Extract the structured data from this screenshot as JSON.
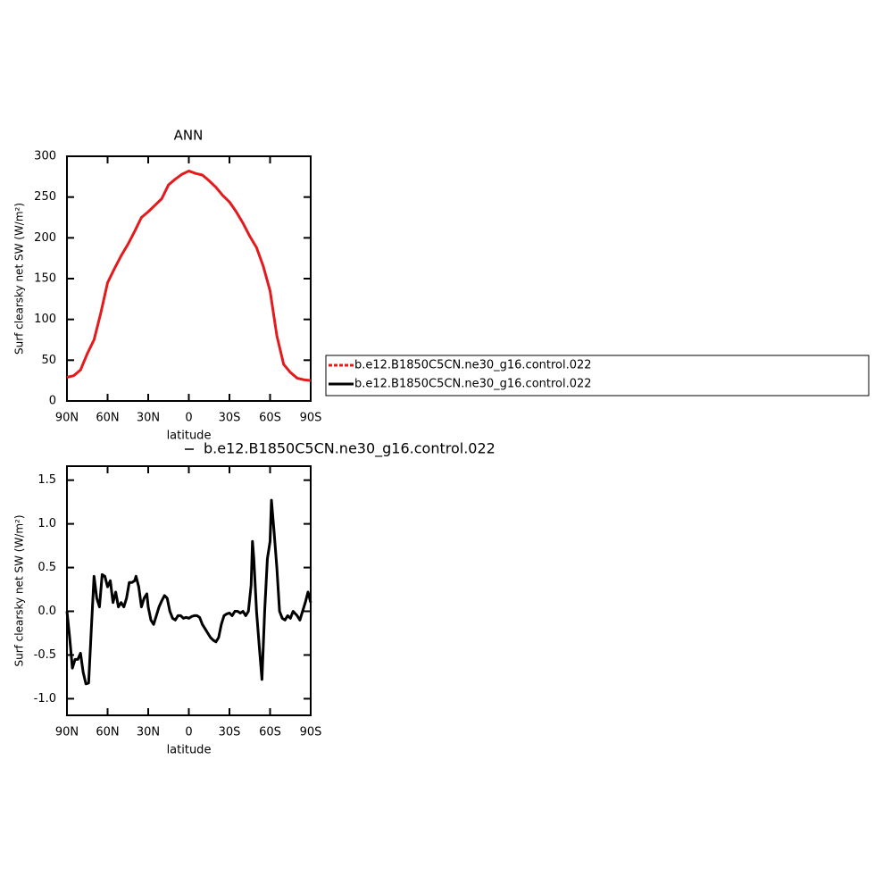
{
  "chart_data": [
    {
      "type": "line",
      "title": "ANN",
      "ylabel": "Surf clearsky net SW (W/m²)",
      "xlabel": "latitude",
      "xlim": [
        90,
        -90
      ],
      "xticks": [
        {
          "value": 90,
          "label": "90N"
        },
        {
          "value": 60,
          "label": "60N"
        },
        {
          "value": 30,
          "label": "30N"
        },
        0,
        {
          "value": -30,
          "label": "30S"
        },
        {
          "value": -60,
          "label": "60S"
        },
        {
          "value": -90,
          "label": "90S"
        }
      ],
      "ylim": [
        0,
        300
      ],
      "yticks": [
        0,
        50,
        100,
        150,
        200,
        250,
        300
      ],
      "x": [
        90,
        85,
        80,
        75,
        70,
        65,
        60,
        55,
        50,
        45,
        40,
        35,
        30,
        25,
        20,
        15,
        10,
        5,
        0,
        -5,
        -10,
        -15,
        -20,
        -25,
        -30,
        -35,
        -40,
        -45,
        -50,
        -55,
        -60,
        -65,
        -70,
        -75,
        -80,
        -85,
        -90
      ],
      "series": [
        {
          "name": "b.e12.B1850C5CN.ne30_g16.control.022",
          "color": "#e41a1c",
          "values": [
            29,
            31,
            38,
            58,
            75,
            108,
            145,
            162,
            178,
            192,
            208,
            225,
            232,
            240,
            248,
            265,
            272,
            278,
            282,
            279,
            277,
            270,
            262,
            252,
            244,
            232,
            218,
            202,
            188,
            165,
            135,
            80,
            45,
            35,
            28,
            26,
            25
          ]
        }
      ]
    },
    {
      "type": "line",
      "ylabel": "Surf clearsky net SW (W/m²)",
      "xlabel": "latitude",
      "xlim": [
        90,
        -90
      ],
      "xticks": [
        {
          "value": 90,
          "label": "90N"
        },
        {
          "value": 60,
          "label": "60N"
        },
        {
          "value": 30,
          "label": "30N"
        },
        0,
        {
          "value": -30,
          "label": "30S"
        },
        {
          "value": -60,
          "label": "60S"
        },
        {
          "value": -90,
          "label": "90S"
        }
      ],
      "ylim": [
        -1.19,
        1.66
      ],
      "yticks": [
        {
          "value": -1,
          "label": "-1.0"
        },
        -0.5,
        {
          "value": 0,
          "label": "0.0"
        },
        0.5,
        {
          "value": 1,
          "label": "1.0"
        },
        1.5
      ],
      "x": [
        90,
        88,
        86,
        84,
        82,
        80,
        78,
        76,
        74,
        72,
        70,
        68,
        66,
        64,
        62,
        60,
        58,
        56,
        54,
        52,
        50,
        48,
        46,
        44,
        42,
        40,
        39,
        37,
        35,
        33,
        31,
        30,
        28,
        26,
        24,
        22,
        20,
        18,
        16,
        14,
        12,
        10,
        8,
        6,
        4,
        2,
        0,
        -2,
        -4,
        -6,
        -8,
        -10,
        -12,
        -14,
        -16,
        -18,
        -20,
        -22,
        -24,
        -26,
        -28,
        -30,
        -32,
        -34,
        -36,
        -38,
        -40,
        -42,
        -44,
        -46,
        -47,
        -48,
        -50,
        -52,
        -54,
        -56,
        -58,
        -60,
        -61,
        -63,
        -65,
        -67,
        -69,
        -71,
        -73,
        -75,
        -77,
        -80,
        -82,
        -84,
        -86,
        -88,
        -90
      ],
      "series": [
        {
          "name": "b.e12.B1850C5CN.ne30_g16.control.022",
          "color": "#000000",
          "values": [
            0.0,
            -0.3,
            -0.65,
            -0.55,
            -0.55,
            -0.48,
            -0.7,
            -0.83,
            -0.82,
            -0.2,
            0.4,
            0.15,
            0.05,
            0.42,
            0.4,
            0.28,
            0.35,
            0.1,
            0.22,
            0.05,
            0.1,
            0.05,
            0.15,
            0.33,
            0.33,
            0.35,
            0.4,
            0.28,
            0.05,
            0.15,
            0.2,
            0.05,
            -0.1,
            -0.15,
            -0.05,
            0.05,
            0.12,
            0.18,
            0.15,
            0.0,
            -0.08,
            -0.1,
            -0.05,
            -0.05,
            -0.08,
            -0.07,
            -0.08,
            -0.06,
            -0.05,
            -0.05,
            -0.07,
            -0.15,
            -0.2,
            -0.25,
            -0.3,
            -0.33,
            -0.35,
            -0.3,
            -0.15,
            -0.05,
            -0.03,
            -0.02,
            -0.05,
            0.0,
            0.0,
            -0.02,
            0.0,
            -0.05,
            0.0,
            0.3,
            0.8,
            0.6,
            0.0,
            -0.4,
            -0.78,
            0.0,
            0.6,
            0.8,
            1.27,
            0.9,
            0.5,
            0.0,
            -0.08,
            -0.1,
            -0.05,
            -0.08,
            0.0,
            -0.05,
            -0.1,
            0.0,
            0.1,
            0.22,
            0.1
          ]
        }
      ]
    }
  ]
}
